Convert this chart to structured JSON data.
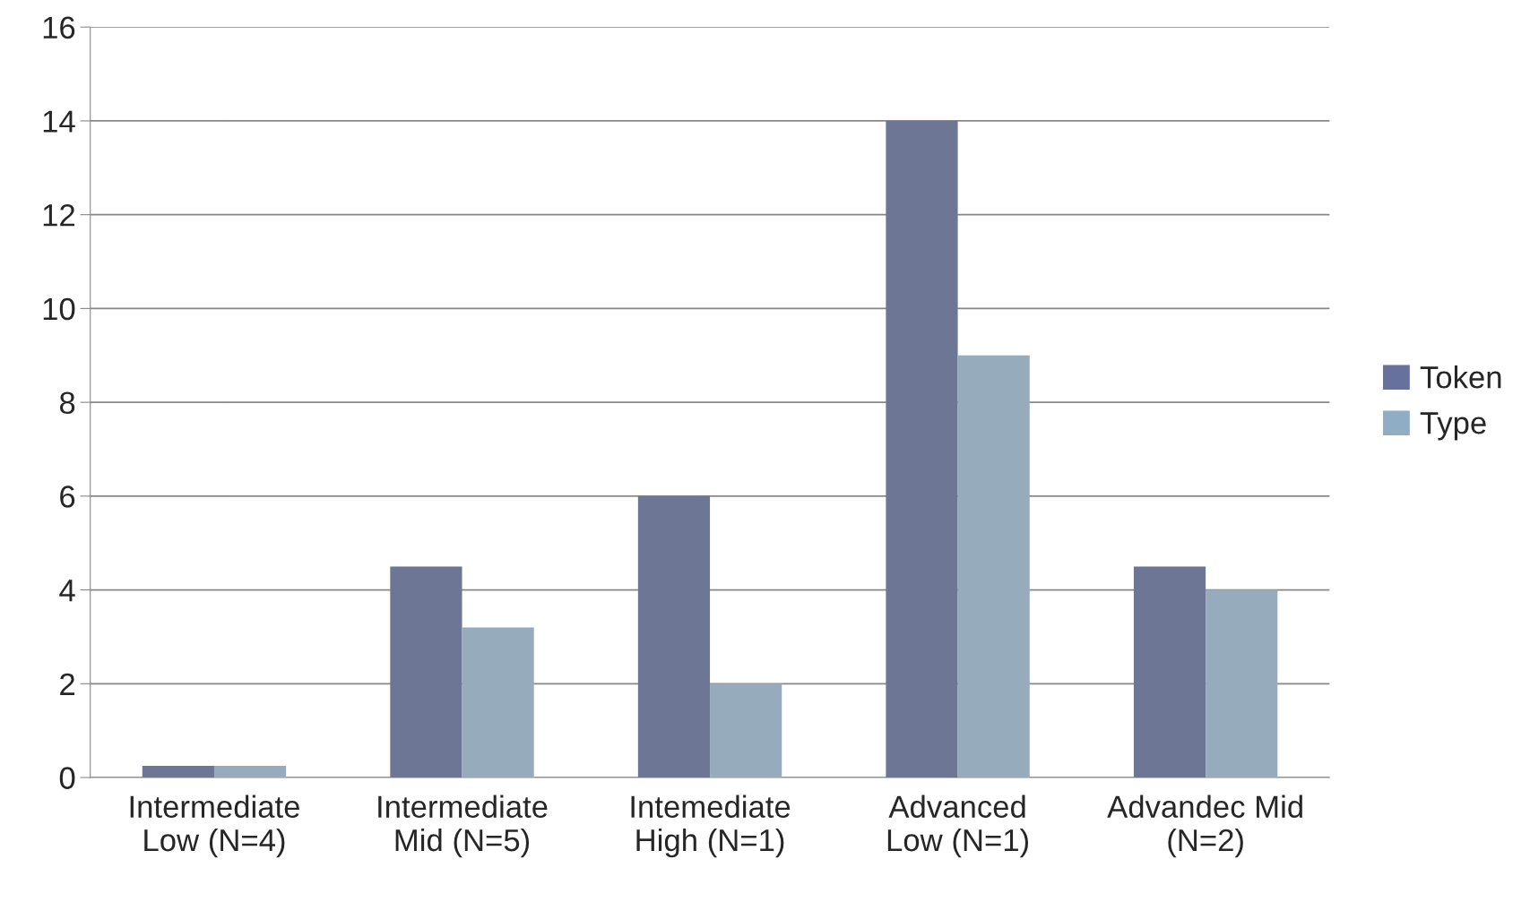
{
  "chart_data": {
    "type": "bar",
    "categories": [
      "Intermediate\nLow (N=4)",
      "Intermediate\nMid (N=5)",
      "Intemediate\nHigh (N=1)",
      "Advanced\nLow (N=1)",
      "Advandec Mid\n(N=2)"
    ],
    "series": [
      {
        "name": "Token",
        "color": "#66729c",
        "values": [
          0.25,
          4.5,
          6,
          14,
          4.5
        ]
      },
      {
        "name": "Type",
        "color": "#8fadc4",
        "values": [
          0.25,
          3.2,
          2,
          9,
          4
        ]
      }
    ],
    "ylim": [
      0,
      16
    ],
    "yticks": [
      0,
      2,
      4,
      6,
      8,
      10,
      12,
      14,
      16
    ],
    "grid": "y",
    "legend": "right"
  }
}
